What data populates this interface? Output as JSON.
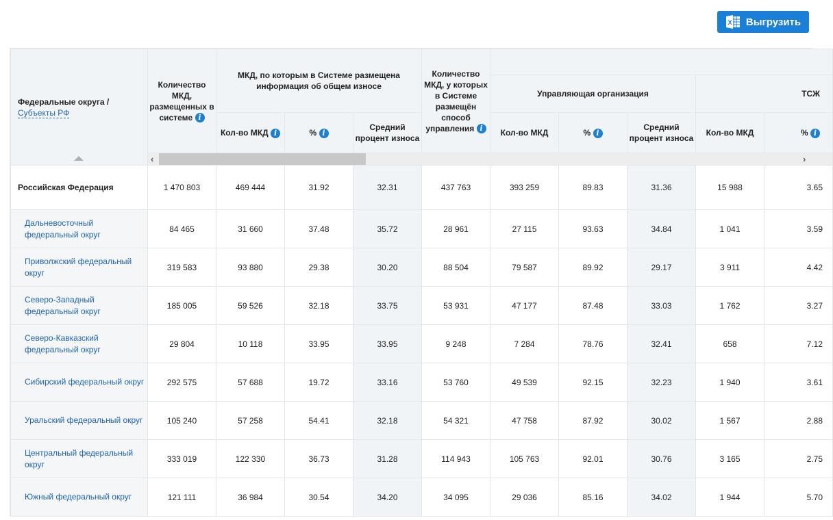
{
  "toolbar": {
    "export_label": "Выгрузить",
    "export_icon": "excel-icon",
    "accent": "#1a7fd6"
  },
  "header": {
    "region_title": "Федеральные округа /",
    "region_link": "Субъекты РФ",
    "total_mkd": "Количество МКД, размещенных в системе",
    "wear_group": "МКД, по которым в Системе размещена информация об общем износе",
    "mgmt_count": "Количество МКД, у которых в Системе размещён способ управления",
    "uo_group": "Управляющая организация",
    "tszh_group": "ТСЖ",
    "count": "Кол-во МКД",
    "pct": "%",
    "avg_wear": "Средний процент износа",
    "scroll_left": "‹",
    "scroll_right": "›"
  },
  "rows": [
    [
      "Российская Федерация",
      "1 470 803",
      "469 444",
      "31.92",
      "32.31",
      "437 763",
      "393 259",
      "89.83",
      "31.36",
      "15 988",
      "3.65"
    ],
    [
      "Дальневосточный федеральный округ",
      "84 465",
      "31 660",
      "37.48",
      "35.72",
      "28 961",
      "27 115",
      "93.63",
      "34.84",
      "1 041",
      "3.59"
    ],
    [
      "Приволжский федеральный округ",
      "319 583",
      "93 880",
      "29.38",
      "30.20",
      "88 504",
      "79 587",
      "89.92",
      "29.17",
      "3 911",
      "4.42"
    ],
    [
      "Северо-Западный федеральный округ",
      "185 005",
      "59 526",
      "32.18",
      "33.75",
      "53 931",
      "47 177",
      "87.48",
      "33.03",
      "1 762",
      "3.27"
    ],
    [
      "Северо-Кавказский федеральный округ",
      "29 804",
      "10 118",
      "33.95",
      "33.95",
      "9 248",
      "7 284",
      "78.76",
      "32.41",
      "658",
      "7.12"
    ],
    [
      "Сибирский федеральный округ",
      "292 575",
      "57 688",
      "19.72",
      "33.16",
      "53 760",
      "49 539",
      "92.15",
      "32.23",
      "1 940",
      "3.61"
    ],
    [
      "Уральский федеральный округ",
      "105 240",
      "57 258",
      "54.41",
      "32.18",
      "54 321",
      "47 758",
      "87.92",
      "30.02",
      "1 567",
      "2.88"
    ],
    [
      "Центральный федеральный округ",
      "333 019",
      "122 330",
      "36.73",
      "31.28",
      "114 943",
      "105 763",
      "92.01",
      "30.76",
      "3 165",
      "2.75"
    ],
    [
      "Южный федеральный округ",
      "121 111",
      "36 984",
      "30.54",
      "34.20",
      "34 095",
      "29 036",
      "85.16",
      "34.02",
      "1 944",
      "5.70"
    ]
  ]
}
